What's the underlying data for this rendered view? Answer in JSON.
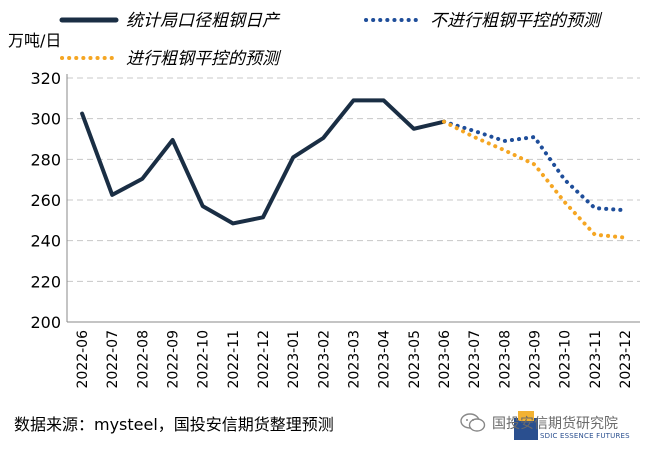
{
  "chart_data": {
    "type": "line",
    "unit_label": "万吨/日",
    "categories": [
      "2022-06",
      "2022-07",
      "2022-08",
      "2022-09",
      "2022-10",
      "2022-11",
      "2022-12",
      "2023-01",
      "2023-02",
      "2023-03",
      "2023-04",
      "2023-05",
      "2023-06",
      "2023-07",
      "2023-08",
      "2023-09",
      "2023-10",
      "2023-11",
      "2023-12"
    ],
    "ylim": [
      200,
      320
    ],
    "yticks": [
      200,
      220,
      240,
      260,
      280,
      300,
      320
    ],
    "grid": true,
    "legend_position": "top",
    "series": [
      {
        "name": "统计局口径粗钢日产",
        "style": "solid",
        "color": "#1a2e44",
        "x": [
          "2022-06",
          "2022-07",
          "2022-08",
          "2022-09",
          "2022-10",
          "2022-11",
          "2022-12",
          "2023-01",
          "2023-02",
          "2023-03",
          "2023-04",
          "2023-05",
          "2023-06"
        ],
        "values": [
          302.5,
          262.5,
          270.5,
          289.5,
          257,
          248.5,
          251.5,
          281,
          290.5,
          309,
          309,
          295,
          298.5
        ]
      },
      {
        "name": "不进行粗钢平控的预测",
        "style": "dotted",
        "color": "#1f4e9a",
        "x": [
          "2023-06",
          "2023-07",
          "2023-08",
          "2023-09",
          "2023-10",
          "2023-11",
          "2023-12"
        ],
        "values": [
          298.5,
          294,
          289,
          291,
          270,
          256,
          255
        ]
      },
      {
        "name": "进行粗钢平控的预测",
        "style": "dotted",
        "color": "#f5a623",
        "x": [
          "2023-06",
          "2023-07",
          "2023-08",
          "2023-09",
          "2023-10",
          "2023-11",
          "2023-12"
        ],
        "values": [
          298.5,
          291,
          284.5,
          277.5,
          259,
          243,
          241.5
        ]
      }
    ]
  },
  "footer": {
    "source": "数据来源：mysteel，国投安信期货整理预测"
  },
  "brand": {
    "name": "国投安信期货研究院",
    "sub": "SDIC ESSENCE FUTURES"
  },
  "colors": {
    "grid": "#c8c8c8",
    "axis": "#888888"
  }
}
